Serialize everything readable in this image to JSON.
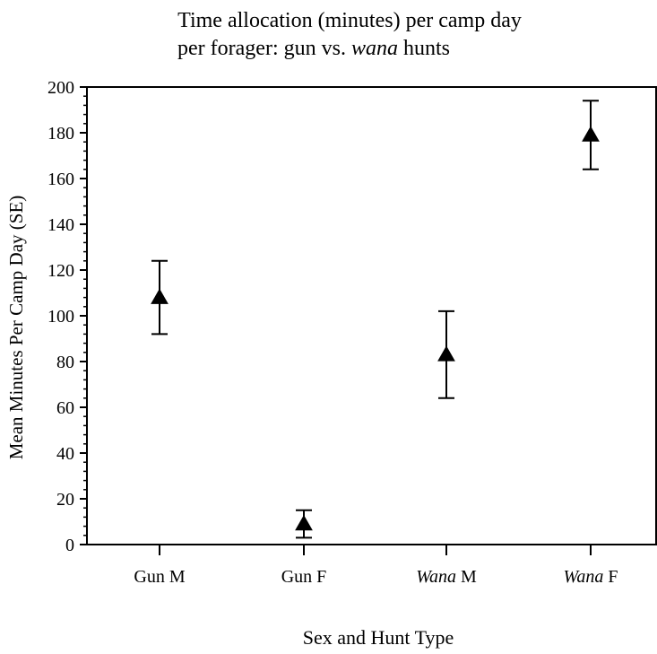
{
  "chart_data": {
    "type": "scatter",
    "title_line1": "Time allocation (minutes) per camp day",
    "title_line2_prefix": "per forager: gun vs.",
    "title_line2_italic": "wana",
    "title_line2_suffix": "hunts",
    "xlabel": "Sex and Hunt Type",
    "ylabel": "Mean Minutes Per Camp Day (SE)",
    "ylim": [
      0,
      200
    ],
    "y_ticks": [
      0,
      20,
      40,
      60,
      80,
      100,
      120,
      140,
      160,
      180,
      200
    ],
    "grid": false,
    "marker": "filled-triangle",
    "categories": [
      {
        "italic": "",
        "plain": "Gun M"
      },
      {
        "italic": "",
        "plain": "Gun F"
      },
      {
        "italic": "Wana",
        "plain": " M"
      },
      {
        "italic": "Wana",
        "plain": " F"
      }
    ],
    "points": [
      {
        "category": "Gun M",
        "mean": 108,
        "upper": 124,
        "lower": 92
      },
      {
        "category": "Gun F",
        "mean": 9,
        "upper": 15,
        "lower": 3
      },
      {
        "category": "Wana M",
        "mean": 83,
        "upper": 102,
        "lower": 64
      },
      {
        "category": "Wana F",
        "mean": 179,
        "upper": 194,
        "lower": 164
      }
    ]
  }
}
